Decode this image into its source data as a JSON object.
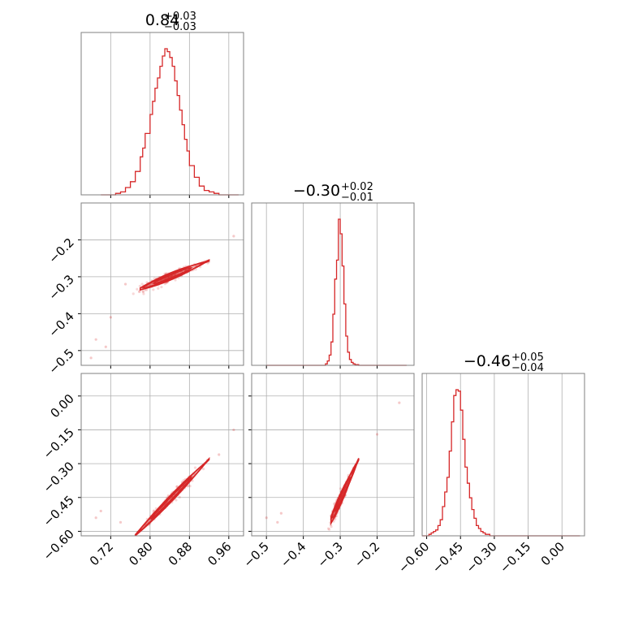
{
  "colors": {
    "series": "#d62728",
    "grid": "#b0b0b0",
    "frame": "#808080"
  },
  "chart_data": {
    "type": "corner",
    "n_params": 3,
    "titles": [
      {
        "value": "0.84",
        "plus": "+0.03",
        "minus": "−0.03"
      },
      {
        "value": "−0.30",
        "plus": "+0.02",
        "minus": "−0.01"
      },
      {
        "value": "−0.46",
        "plus": "+0.05",
        "minus": "−0.04"
      }
    ],
    "ranges": [
      [
        0.66,
        0.99
      ],
      [
        -0.54,
        -0.1
      ],
      [
        -0.62,
        0.1
      ]
    ],
    "ticks": [
      {
        "values": [
          0.72,
          0.8,
          0.88,
          0.96
        ],
        "labels": [
          "0.72",
          "0.80",
          "0.88",
          "0.96"
        ]
      },
      {
        "values": [
          -0.5,
          -0.4,
          -0.3,
          -0.2
        ],
        "labels": [
          "−0.5",
          "−0.4",
          "−0.3",
          "−0.2"
        ]
      },
      {
        "values": [
          -0.6,
          -0.45,
          -0.3,
          -0.15,
          0.0
        ],
        "labels": [
          "−0.60",
          "−0.45",
          "−0.30",
          "−0.15",
          "0.00"
        ]
      }
    ],
    "hist1d": [
      {
        "edges": [
          0.7,
          0.71,
          0.72,
          0.73,
          0.74,
          0.75,
          0.76,
          0.77,
          0.78,
          0.785,
          0.79,
          0.8,
          0.805,
          0.81,
          0.815,
          0.82,
          0.825,
          0.83,
          0.835,
          0.84,
          0.845,
          0.85,
          0.855,
          0.86,
          0.865,
          0.87,
          0.875,
          0.88,
          0.89,
          0.9,
          0.91,
          0.92,
          0.93,
          0.94,
          0.95,
          0.96,
          0.97,
          0.98
        ],
        "counts": [
          0.0,
          0.0,
          0.0,
          0.01,
          0.02,
          0.05,
          0.09,
          0.16,
          0.26,
          0.32,
          0.42,
          0.55,
          0.64,
          0.73,
          0.8,
          0.88,
          0.95,
          1.0,
          0.98,
          0.94,
          0.88,
          0.78,
          0.68,
          0.58,
          0.48,
          0.38,
          0.3,
          0.2,
          0.12,
          0.06,
          0.03,
          0.02,
          0.01,
          0.0,
          0.0,
          0.0,
          0.0
        ]
      },
      {
        "edges": [
          -0.5,
          -0.4,
          -0.34,
          -0.335,
          -0.33,
          -0.325,
          -0.32,
          -0.315,
          -0.31,
          -0.305,
          -0.3,
          -0.295,
          -0.29,
          -0.285,
          -0.28,
          -0.275,
          -0.27,
          -0.265,
          -0.26,
          -0.25,
          -0.2,
          -0.12
        ],
        "counts": [
          0.0,
          0.0,
          0.01,
          0.03,
          0.07,
          0.16,
          0.35,
          0.59,
          0.72,
          1.0,
          0.9,
          0.68,
          0.42,
          0.2,
          0.09,
          0.04,
          0.02,
          0.01,
          0.005,
          0.0,
          0.0
        ]
      },
      {
        "edges": [
          -0.62,
          -0.6,
          -0.59,
          -0.58,
          -0.57,
          -0.56,
          -0.55,
          -0.54,
          -0.53,
          -0.52,
          -0.51,
          -0.5,
          -0.49,
          -0.48,
          -0.47,
          -0.46,
          -0.45,
          -0.44,
          -0.43,
          -0.42,
          -0.41,
          -0.4,
          -0.39,
          -0.38,
          -0.37,
          -0.36,
          -0.35,
          -0.34,
          -0.33,
          -0.32,
          -0.31,
          -0.3,
          -0.25,
          0.0,
          0.08
        ],
        "counts": [
          0.0,
          0.0,
          0.01,
          0.02,
          0.03,
          0.04,
          0.07,
          0.11,
          0.2,
          0.3,
          0.4,
          0.58,
          0.78,
          0.96,
          1.0,
          0.99,
          0.86,
          0.66,
          0.47,
          0.36,
          0.26,
          0.18,
          0.12,
          0.07,
          0.05,
          0.03,
          0.02,
          0.01,
          0.01,
          0.0,
          0.0,
          0.0,
          0.0,
          0.0
        ]
      }
    ],
    "hist2d": [
      {
        "x_param": 0,
        "y_param": 1,
        "ridge": {
          "x0": 0.84,
          "y0": -0.3,
          "slope": 0.55
        },
        "spread": {
          "along": 0.028,
          "across": 0.006
        },
        "extent": [
          0.78,
          0.92
        ],
        "outliers": [
          [
            0.69,
            -0.47
          ],
          [
            0.72,
            -0.41
          ],
          [
            0.71,
            -0.49
          ],
          [
            0.97,
            -0.19
          ],
          [
            0.75,
            -0.32
          ],
          [
            0.68,
            -0.52
          ]
        ]
      },
      {
        "x_param": 0,
        "y_param": 2,
        "ridge": {
          "x0": 0.84,
          "y0": -0.46,
          "slope": 2.25
        },
        "spread": {
          "along": 0.028,
          "across": 0.01
        },
        "extent": [
          0.77,
          0.92
        ],
        "outliers": [
          [
            0.69,
            -0.54
          ],
          [
            0.74,
            -0.56
          ],
          [
            0.97,
            -0.15
          ],
          [
            0.7,
            -0.51
          ],
          [
            0.94,
            -0.26
          ]
        ]
      },
      {
        "x_param": 1,
        "y_param": 2,
        "ridge": {
          "x0": -0.3,
          "y0": -0.46,
          "slope": 3.6
        },
        "spread": {
          "along": 0.012,
          "across": 0.016
        },
        "extent": [
          -0.325,
          -0.25
        ],
        "outliers": [
          [
            -0.5,
            -0.54
          ],
          [
            -0.46,
            -0.52
          ],
          [
            -0.14,
            -0.03
          ],
          [
            -0.2,
            -0.17
          ],
          [
            -0.47,
            -0.56
          ]
        ]
      }
    ]
  }
}
